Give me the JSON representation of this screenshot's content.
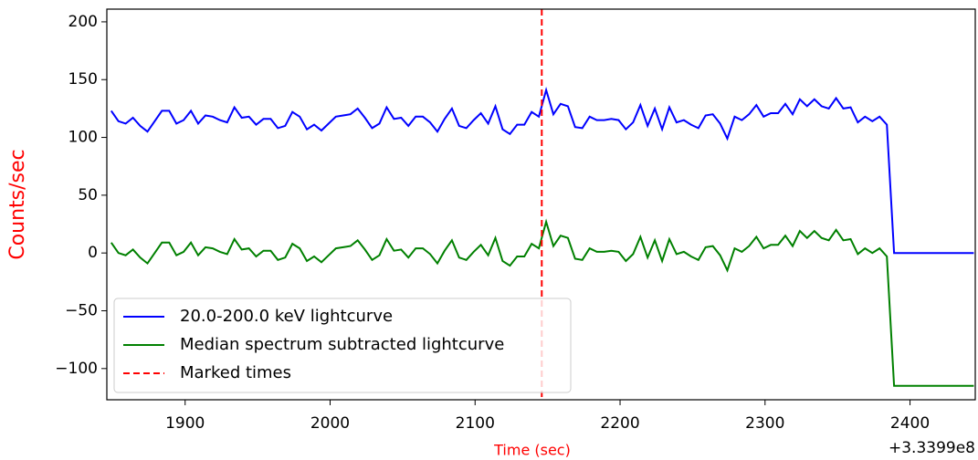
{
  "chart_data": {
    "type": "line",
    "x_label": "Time (sec)",
    "y_label": "Counts/sec",
    "x_offset_label": "+3.3399e8",
    "x": [
      1849,
      1854,
      1859,
      1864,
      1869,
      1874,
      1879,
      1884,
      1889,
      1894,
      1899,
      1904,
      1909,
      1914,
      1919,
      1924,
      1929,
      1934,
      1939,
      1944,
      1949,
      1954,
      1959,
      1964,
      1969,
      1974,
      1979,
      1984,
      1989,
      1994,
      1999,
      2004,
      2009,
      2014,
      2019,
      2024,
      2029,
      2034,
      2039,
      2044,
      2049,
      2054,
      2059,
      2064,
      2069,
      2074,
      2079,
      2084,
      2089,
      2094,
      2099,
      2104,
      2109,
      2114,
      2119,
      2124,
      2129,
      2134,
      2139,
      2144,
      2149,
      2154,
      2159,
      2164,
      2169,
      2174,
      2179,
      2184,
      2189,
      2194,
      2199,
      2204,
      2209,
      2214,
      2219,
      2224,
      2229,
      2234,
      2239,
      2244,
      2249,
      2254,
      2259,
      2264,
      2269,
      2274,
      2279,
      2284,
      2289,
      2294,
      2299,
      2304,
      2309,
      2314,
      2319,
      2324,
      2329,
      2334,
      2339,
      2344,
      2349,
      2354,
      2359,
      2364,
      2369,
      2374,
      2379,
      2384,
      2389,
      2444
    ],
    "series": [
      {
        "name": "20.0-200.0 keV lightcurve",
        "color": "#0000ff",
        "values": [
          123,
          114,
          112,
          117,
          110,
          105,
          114,
          123,
          123,
          112,
          115,
          123,
          112,
          119,
          118,
          115,
          113,
          126,
          117,
          118,
          111,
          116,
          116,
          108,
          110,
          122,
          118,
          107,
          111,
          106,
          112,
          118,
          119,
          120,
          125,
          117,
          108,
          112,
          126,
          116,
          117,
          110,
          118,
          118,
          113,
          105,
          116,
          125,
          110,
          108,
          115,
          121,
          112,
          127,
          107,
          103,
          111,
          111,
          122,
          118,
          141,
          120,
          129,
          127,
          109,
          108,
          118,
          115,
          115,
          116,
          115,
          107,
          113,
          128,
          110,
          125,
          107,
          126,
          113,
          115,
          111,
          108,
          119,
          120,
          112,
          99,
          118,
          115,
          120,
          128,
          118,
          121,
          121,
          129,
          120,
          133,
          127,
          133,
          127,
          125,
          134,
          125,
          126,
          113,
          118,
          114,
          118,
          111,
          0,
          0
        ]
      },
      {
        "name": "Median spectrum subtracted lightcurve",
        "color": "#008000",
        "values": [
          9,
          0,
          -2,
          3,
          -4,
          -9,
          0,
          9,
          9,
          -2,
          1,
          9,
          -2,
          5,
          4,
          1,
          -1,
          12,
          3,
          4,
          -3,
          2,
          2,
          -6,
          -4,
          8,
          4,
          -7,
          -3,
          -8,
          -2,
          4,
          5,
          6,
          11,
          3,
          -6,
          -2,
          12,
          2,
          3,
          -4,
          4,
          4,
          -1,
          -9,
          2,
          11,
          -4,
          -6,
          1,
          7,
          -2,
          13,
          -7,
          -11,
          -3,
          -3,
          8,
          4,
          27,
          6,
          15,
          13,
          -5,
          -6,
          4,
          1,
          1,
          2,
          1,
          -7,
          -1,
          14,
          -4,
          11,
          -7,
          12,
          -1,
          1,
          -3,
          -6,
          5,
          6,
          -2,
          -15,
          4,
          1,
          6,
          14,
          4,
          7,
          7,
          15,
          6,
          19,
          13,
          19,
          13,
          11,
          20,
          11,
          12,
          -1,
          4,
          0,
          4,
          -3,
          -115,
          -115
        ]
      }
    ],
    "marked_times": {
      "name": "Marked times",
      "color": "#ff0000",
      "values": [
        2146
      ]
    },
    "xlim": [
      1846,
      2445
    ],
    "ylim": [
      -127,
      211
    ],
    "xticks": [
      1900,
      2000,
      2100,
      2200,
      2300,
      2400
    ],
    "yticks": [
      {
        "value": -100,
        "label": "−100"
      },
      {
        "value": -50,
        "label": "−50"
      },
      0,
      50,
      100,
      150,
      200
    ],
    "legend": "lower left"
  }
}
